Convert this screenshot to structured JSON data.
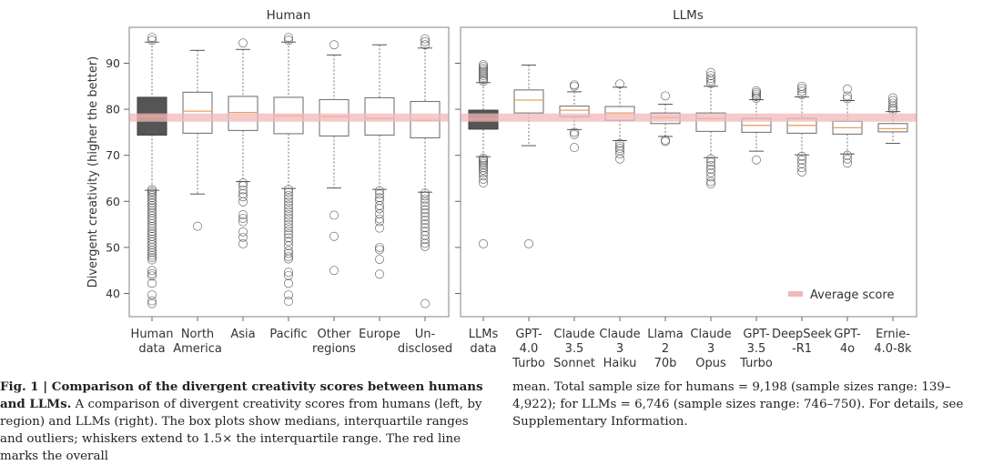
{
  "chart_data": [
    {
      "type": "box",
      "panel_title": "Human",
      "ylabel": "Divergent creativity (higher the better)",
      "ylim": [
        35,
        97
      ],
      "yticks": [
        40,
        50,
        60,
        70,
        80,
        90
      ],
      "categories": [
        [
          "Human",
          "data"
        ],
        [
          "North",
          "America"
        ],
        [
          "Asia"
        ],
        [
          "Pacific"
        ],
        [
          "Other",
          "regions"
        ],
        [
          "Europe"
        ],
        [
          "Un-",
          "disclosed"
        ]
      ],
      "boxes": [
        {
          "name": "Human data",
          "q1": 74.4,
          "median": 78.4,
          "q3": 82.6,
          "whisker_low": 62.4,
          "whisker_high": 94.6,
          "filled": true,
          "outliers": [
            95.0,
            95.6,
            62.6,
            62.2,
            61.8,
            61.3,
            60.8,
            60.2,
            59.7,
            59.1,
            58.6,
            58.0,
            57.5,
            56.9,
            56.3,
            55.8,
            55.2,
            54.6,
            54.1,
            53.5,
            53.0,
            52.4,
            51.8,
            51.2,
            50.6,
            50.0,
            49.4,
            48.9,
            48.3,
            47.8,
            47.3,
            45.0,
            44.3,
            43.8,
            42.2,
            39.7,
            38.4,
            37.8
          ]
        },
        {
          "name": "North America",
          "q1": 74.8,
          "median": 79.6,
          "q3": 83.7,
          "whisker_low": 61.6,
          "whisker_high": 92.8,
          "filled": false,
          "outliers": [
            54.6
          ]
        },
        {
          "name": "Asia",
          "q1": 75.4,
          "median": 79.3,
          "q3": 82.8,
          "whisker_low": 64.3,
          "whisker_high": 93.0,
          "filled": false,
          "outliers": [
            94.4,
            64.0,
            63.4,
            62.5,
            61.7,
            61.0,
            59.9,
            57.1,
            56.3,
            55.6,
            53.4,
            52.2,
            50.8
          ]
        },
        {
          "name": "Pacific",
          "q1": 74.7,
          "median": 78.6,
          "q3": 82.6,
          "whisker_low": 62.8,
          "whisker_high": 94.6,
          "filled": false,
          "outliers": [
            95.0,
            95.6,
            62.6,
            62.0,
            61.3,
            60.6,
            59.9,
            59.2,
            58.5,
            57.8,
            57.1,
            56.4,
            55.7,
            55.0,
            54.3,
            53.6,
            52.9,
            52.1,
            51.3,
            50.4,
            49.3,
            48.7,
            48.0,
            47.5,
            44.6,
            43.9,
            42.2,
            39.7,
            38.3
          ]
        },
        {
          "name": "Other regions",
          "q1": 74.2,
          "median": 78.4,
          "q3": 82.1,
          "whisker_low": 62.9,
          "whisker_high": 91.8,
          "filled": false,
          "outliers": [
            94.0,
            57.0,
            52.4,
            45.0
          ]
        },
        {
          "name": "Europe",
          "q1": 74.4,
          "median": 78.0,
          "q3": 82.5,
          "whisker_low": 62.6,
          "whisker_high": 94.0,
          "filled": false,
          "outliers": [
            62.3,
            61.6,
            60.8,
            60.2,
            59.1,
            58.4,
            57.3,
            56.2,
            55.6,
            54.2,
            50.0,
            49.5,
            47.4,
            44.2
          ]
        },
        {
          "name": "Undisclosed",
          "q1": 73.8,
          "median": 77.6,
          "q3": 81.7,
          "whisker_low": 62.0,
          "whisker_high": 93.3,
          "filled": false,
          "outliers": [
            94.0,
            94.7,
            95.3,
            61.8,
            61.2,
            60.5,
            59.8,
            59.0,
            58.2,
            57.5,
            56.7,
            55.9,
            55.1,
            54.3,
            53.5,
            52.6,
            51.7,
            50.9,
            50.2,
            37.8
          ]
        }
      ],
      "average_score": 78.2
    },
    {
      "type": "box",
      "panel_title": "LLMs",
      "ylim": [
        35,
        97
      ],
      "yticks": [
        40,
        50,
        60,
        70,
        80,
        90
      ],
      "categories": [
        [
          "LLMs",
          "data"
        ],
        [
          "GPT-",
          "4.0",
          "Turbo"
        ],
        [
          "Claude",
          "3.5",
          "Sonnet"
        ],
        [
          "Claude",
          "3",
          "Haiku"
        ],
        [
          "Llama",
          "2",
          "70b"
        ],
        [
          "Claude",
          "3",
          "Opus"
        ],
        [
          "GPT-",
          "3.5",
          "Turbo"
        ],
        [
          "DeepSeek",
          "-R1"
        ],
        [
          "GPT-",
          "4o"
        ],
        [
          "Ernie-",
          "4.0-8k"
        ]
      ],
      "boxes": [
        {
          "name": "LLMs data",
          "q1": 75.7,
          "median": 77.9,
          "q3": 79.8,
          "whisker_low": 69.7,
          "whisker_high": 85.8,
          "filled": true,
          "outliers": [
            89.7,
            89.3,
            88.9,
            88.5,
            88.1,
            87.7,
            87.3,
            86.9,
            86.5,
            86.1,
            69.4,
            69.0,
            68.6,
            68.2,
            67.8,
            67.3,
            66.8,
            66.2,
            65.6,
            64.8,
            64.0,
            50.8
          ]
        },
        {
          "name": "GPT-4.0 Turbo",
          "q1": 79.2,
          "median": 82.0,
          "q3": 84.2,
          "whisker_low": 72.1,
          "whisker_high": 89.6,
          "filled": false,
          "outliers": [
            50.8
          ]
        },
        {
          "name": "Claude 3.5 Sonnet",
          "q1": 78.4,
          "median": 79.8,
          "q3": 80.7,
          "whisker_low": 75.6,
          "whisker_high": 83.8,
          "filled": false,
          "outliers": [
            85.3,
            85.0,
            75.0,
            74.5,
            71.7
          ]
        },
        {
          "name": "Claude 3 Haiku",
          "q1": 77.6,
          "median": 79.2,
          "q3": 80.6,
          "whisker_low": 73.2,
          "whisker_high": 84.8,
          "filled": false,
          "outliers": [
            85.5,
            72.6,
            72.0,
            71.5,
            71.0,
            70.3,
            69.2
          ]
        },
        {
          "name": "Llama 2 70b",
          "q1": 76.9,
          "median": 78.2,
          "q3": 79.2,
          "whisker_low": 74.1,
          "whisker_high": 81.1,
          "filled": false,
          "outliers": [
            82.9,
            73.3,
            73.0
          ]
        },
        {
          "name": "Claude 3 Opus",
          "q1": 75.2,
          "median": 78.0,
          "q3": 79.2,
          "whisker_low": 69.5,
          "whisker_high": 85.0,
          "filled": false,
          "outliers": [
            88.0,
            87.3,
            86.7,
            86.2,
            85.6,
            69.2,
            68.5,
            67.8,
            67.0,
            66.2,
            65.3,
            64.3,
            63.8
          ]
        },
        {
          "name": "GPT-3.5 Turbo",
          "q1": 75.0,
          "median": 76.5,
          "q3": 78.0,
          "whisker_low": 70.9,
          "whisker_high": 82.1,
          "filled": false,
          "outliers": [
            84.0,
            83.6,
            83.2,
            82.8,
            82.4,
            69.0
          ]
        },
        {
          "name": "DeepSeek-R1",
          "q1": 74.8,
          "median": 76.5,
          "q3": 78.0,
          "whisker_low": 70.1,
          "whisker_high": 82.7,
          "filled": false,
          "outliers": [
            85.0,
            84.5,
            83.9,
            83.2,
            69.8,
            69.0,
            68.2,
            67.3,
            66.4
          ]
        },
        {
          "name": "GPT-4o",
          "q1": 74.6,
          "median": 76.0,
          "q3": 77.4,
          "whisker_low": 70.3,
          "whisker_high": 81.9,
          "filled": false,
          "outliers": [
            84.4,
            82.9,
            82.3,
            70.0,
            69.2,
            68.3
          ]
        },
        {
          "name": "Ernie-4.0-8k",
          "q1": 75.1,
          "median": 75.8,
          "q3": 76.9,
          "whisker_low": 72.6,
          "whisker_high": 79.5,
          "filled": false,
          "outliers": [
            82.5,
            81.9,
            81.3,
            80.7,
            80.2,
            79.8
          ]
        }
      ],
      "average_score": 78.2,
      "legend": {
        "label": "Average score",
        "placement": "bottom-right"
      }
    }
  ],
  "colors": {
    "box_fill_dark": "#555555",
    "box_edge": "#777777",
    "median_line": "#e8a060",
    "median_line_dark": "#e06a2c",
    "average_band": "#f0b8b8",
    "frame": "#999999",
    "outlier_stroke": "#333333"
  },
  "caption": {
    "fig_label": "Fig. 1 | ",
    "title": "Comparison of the divergent creativity scores between humans and LLMs.",
    "body_left": " A comparison of divergent creativity scores from humans (left, by region) and LLMs (right). The box plots show medians, interquartile ranges and outliers; whiskers extend to 1.5× the interquartile range. The red line marks the overall",
    "body_right": "mean. Total sample size for humans = 9,198 (sample sizes range: 139–4,922); for LLMs = 6,746 (sample sizes range: 746–750). For details, see Supplementary Information."
  }
}
